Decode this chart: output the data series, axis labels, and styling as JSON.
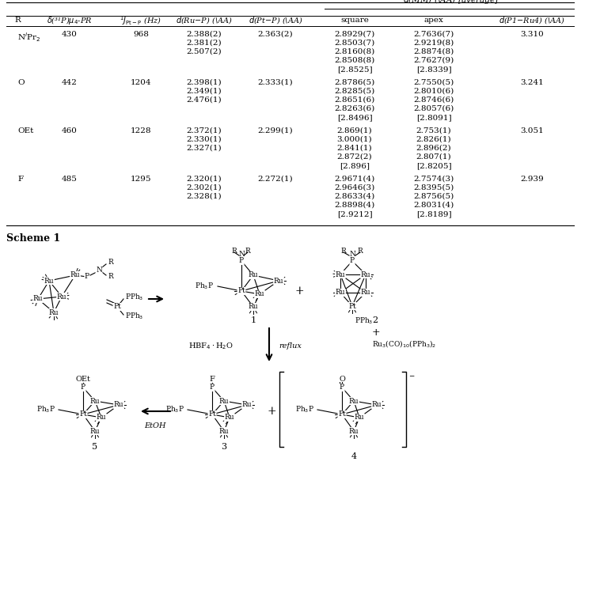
{
  "bg_color": "#ffffff",
  "table": {
    "rows": [
      {
        "R": "NⁱPr₂",
        "delta": "430",
        "J": "968",
        "RuP": [
          "2.388(2)",
          "2.381(2)",
          "2.507(2)"
        ],
        "PtP": "2.363(2)",
        "square": [
          "2.8929(7)",
          "2.8503(7)",
          "2.8160(8)",
          "2.8508(8)",
          "[2.8525]"
        ],
        "apex": [
          "2.7636(7)",
          "2.9219(8)",
          "2.8874(8)",
          "2.7627(9)",
          "[2.8339]"
        ],
        "d_P1Ru4": "3.310"
      },
      {
        "R": "O",
        "delta": "442",
        "J": "1204",
        "RuP": [
          "2.398(1)",
          "2.349(1)",
          "2.476(1)"
        ],
        "PtP": "2.333(1)",
        "square": [
          "2.8786(5)",
          "2.8285(5)",
          "2.8651(6)",
          "2.8263(6)",
          "[2.8496]"
        ],
        "apex": [
          "2.7550(5)",
          "2.8010(6)",
          "2.8746(6)",
          "2.8057(6)",
          "[2.8091]"
        ],
        "d_P1Ru4": "3.241"
      },
      {
        "R": "OEt",
        "delta": "460",
        "J": "1228",
        "RuP": [
          "2.372(1)",
          "2.330(1)",
          "2.327(1)"
        ],
        "PtP": "2.299(1)",
        "square": [
          "2.869(1)",
          "3.000(1)",
          "2.841(1)",
          "2.872(2)",
          "[2.896]"
        ],
        "apex": [
          "2.753(1)",
          "2.826(1)",
          "2.896(2)",
          "2.807(1)",
          "[2.8205]"
        ],
        "d_P1Ru4": "3.051"
      },
      {
        "R": "F",
        "delta": "485",
        "J": "1295",
        "RuP": [
          "2.320(1)",
          "2.302(1)",
          "2.328(1)"
        ],
        "PtP": "2.272(1)",
        "square": [
          "2.9671(4)",
          "2.9646(3)",
          "2.8633(4)",
          "2.8898(4)",
          "[2.9212]"
        ],
        "apex": [
          "2.7574(3)",
          "2.8395(5)",
          "2.8756(5)",
          "2.8031(4)",
          "[2.8189]"
        ],
        "d_P1Ru4": "2.939"
      }
    ]
  },
  "col_x": {
    "R": 22,
    "delta": 88,
    "J": 178,
    "RuP": 258,
    "PtP": 348,
    "square": 448,
    "apex": 548,
    "dP1Ru4": 672
  },
  "line_sp": 11
}
